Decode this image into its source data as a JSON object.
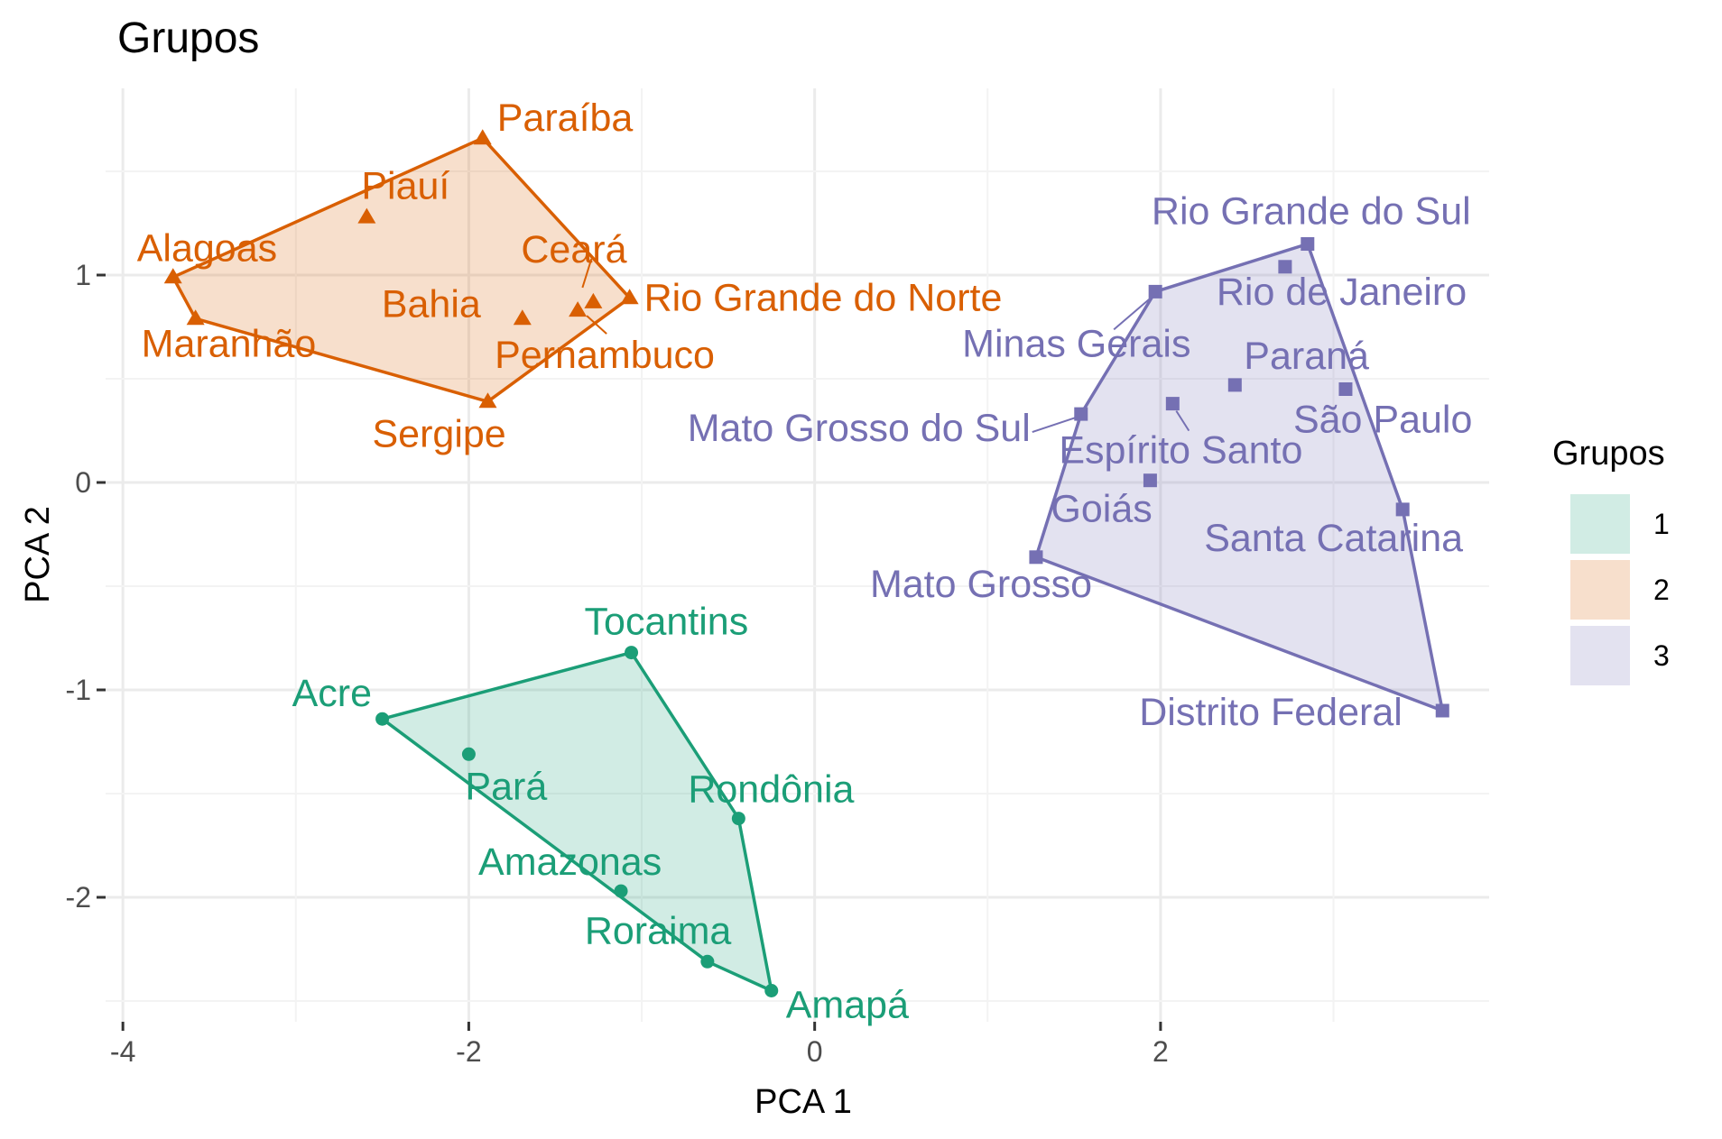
{
  "chart_data": {
    "type": "scatter",
    "title": "Grupos",
    "xlabel": "PCA 1",
    "ylabel": "PCA 2",
    "xlim": [
      -4.1,
      3.9
    ],
    "ylim": [
      -2.6,
      1.9
    ],
    "x_ticks": [
      -4,
      -2,
      0,
      2
    ],
    "x_tick_labels": [
      "-4",
      "-2",
      "0",
      "2"
    ],
    "y_ticks": [
      -2,
      -1,
      0,
      1
    ],
    "y_tick_labels": [
      "-2",
      "-1",
      "0",
      "1"
    ],
    "grid": true,
    "legend": {
      "title": "Grupos",
      "placement": "right",
      "entries": [
        "1",
        "2",
        "3"
      ]
    },
    "series": [
      {
        "name": "1",
        "marker": "circle",
        "color": "#1b9e77",
        "hull": [
          "Acre",
          "Tocantins",
          "Rondônia",
          "Amapá",
          "Roraima"
        ],
        "points": [
          {
            "label": "Acre",
            "x": -2.5,
            "y": -1.14
          },
          {
            "label": "Tocantins",
            "x": -1.06,
            "y": -0.82
          },
          {
            "label": "Pará",
            "x": -2.0,
            "y": -1.31
          },
          {
            "label": "Rondônia",
            "x": -0.44,
            "y": -1.62
          },
          {
            "label": "Amazonas",
            "x": -1.12,
            "y": -1.97
          },
          {
            "label": "Roraima",
            "x": -0.62,
            "y": -2.31
          },
          {
            "label": "Amapá",
            "x": -0.25,
            "y": -2.45
          }
        ]
      },
      {
        "name": "2",
        "marker": "triangle",
        "color": "#d95f02",
        "hull": [
          "Alagoas",
          "Paraíba",
          "Rio Grande do Norte",
          "Sergipe",
          "Maranhão"
        ],
        "points": [
          {
            "label": "Paraíba",
            "x": -1.92,
            "y": 1.66
          },
          {
            "label": "Piauí",
            "x": -2.59,
            "y": 1.28
          },
          {
            "label": "Alagoas",
            "x": -3.71,
            "y": 0.99
          },
          {
            "label": "Ceará",
            "x": -1.28,
            "y": 0.87
          },
          {
            "label": "Bahia",
            "x": -1.69,
            "y": 0.79
          },
          {
            "label": "Rio Grande do Norte",
            "x": -1.07,
            "y": 0.89
          },
          {
            "label": "Pernambuco",
            "x": -1.37,
            "y": 0.83
          },
          {
            "label": "Maranhão",
            "x": -3.58,
            "y": 0.79
          },
          {
            "label": "Sergipe",
            "x": -1.89,
            "y": 0.39
          }
        ]
      },
      {
        "name": "3",
        "marker": "square",
        "color": "#7570b3",
        "hull": [
          "Minas Gerais",
          "Rio Grande do Sul",
          "Santa Catarina",
          "Distrito Federal",
          "Mato Grosso",
          "Mato Grosso do Sul"
        ],
        "points": [
          {
            "label": "Rio Grande do Sul",
            "x": 2.85,
            "y": 1.15
          },
          {
            "label": "Rio de Janeiro",
            "x": 2.72,
            "y": 1.04
          },
          {
            "label": "Minas Gerais",
            "x": 1.97,
            "y": 0.92
          },
          {
            "label": "Paraná",
            "x": 2.43,
            "y": 0.47
          },
          {
            "label": "São Paulo",
            "x": 3.07,
            "y": 0.45
          },
          {
            "label": "Mato Grosso do Sul",
            "x": 1.54,
            "y": 0.33
          },
          {
            "label": "Espírito Santo",
            "x": 2.07,
            "y": 0.38
          },
          {
            "label": "Goiás",
            "x": 1.94,
            "y": 0.01
          },
          {
            "label": "Santa Catarina",
            "x": 3.4,
            "y": -0.13
          },
          {
            "label": "Mato Grosso",
            "x": 1.28,
            "y": -0.36
          },
          {
            "label": "Distrito Federal",
            "x": 3.63,
            "y": -1.1
          }
        ]
      }
    ]
  }
}
